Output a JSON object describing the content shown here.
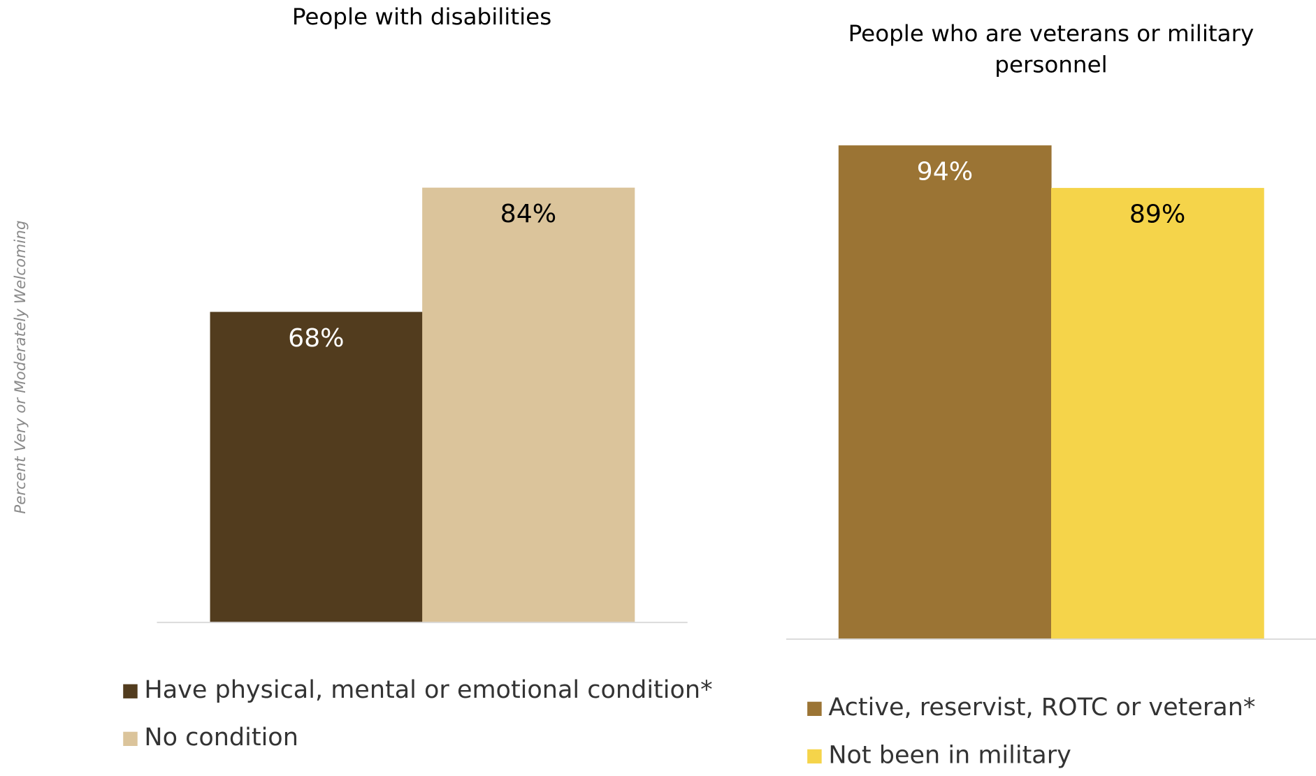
{
  "chart_data": [
    {
      "type": "bar",
      "title": "People with disabilities",
      "y_label": "Percent Very or Moderately Welcoming",
      "categories": [
        "Have physical, mental or emotional condition*",
        "No condition"
      ],
      "values": [
        68,
        84
      ],
      "value_labels": [
        "68%",
        "84%"
      ],
      "colors": [
        "#523c1e",
        "#dbc49b"
      ],
      "ylim": [
        28,
        100
      ]
    },
    {
      "type": "bar",
      "title": "People who are veterans or military personnel",
      "categories": [
        "Active, reservist, ROTC or veteran*",
        "Not been in military"
      ],
      "values": [
        94,
        89
      ],
      "value_labels": [
        "94%",
        "89%"
      ],
      "colors": [
        "#9b7434",
        "#f5d44a"
      ],
      "ylim": [
        36,
        100
      ]
    }
  ]
}
